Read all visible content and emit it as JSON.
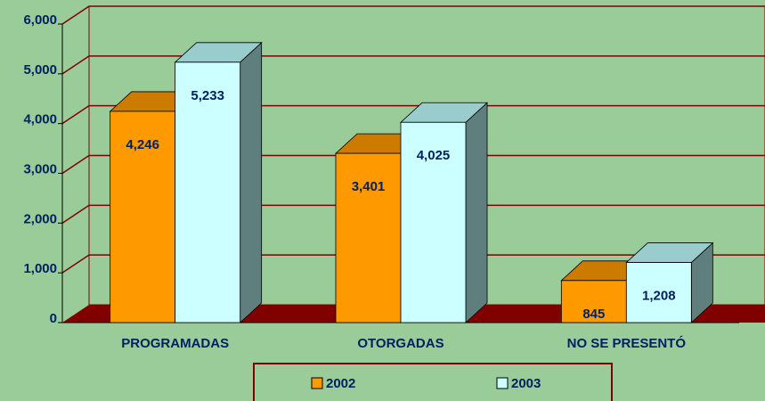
{
  "chart_data": {
    "type": "bar3d",
    "categories": [
      "PROGRAMADAS",
      "OTORGADAS",
      "NO SE PRESENTÓ"
    ],
    "series": [
      {
        "name": "2002",
        "color": "#ff9900",
        "values": [
          4246,
          3401,
          845
        ],
        "value_labels": [
          "4,246",
          "3,401",
          "845"
        ]
      },
      {
        "name": "2003",
        "color": "#ccffff",
        "values": [
          5233,
          4025,
          1208
        ],
        "value_labels": [
          "5,233",
          "4,025",
          "1,208"
        ]
      }
    ],
    "ylim": [
      0,
      6000
    ],
    "yticks": [
      0,
      {
        "value": 1000,
        "label": "1,000"
      },
      {
        "value": 2000,
        "label": "2,000"
      },
      {
        "value": 3000,
        "label": "3,000"
      },
      {
        "value": 4000,
        "label": "4,000"
      },
      {
        "value": 5000,
        "label": "5,000"
      },
      {
        "value": 6000,
        "label": "6,000"
      }
    ],
    "grid": true,
    "legend": "bottom"
  }
}
